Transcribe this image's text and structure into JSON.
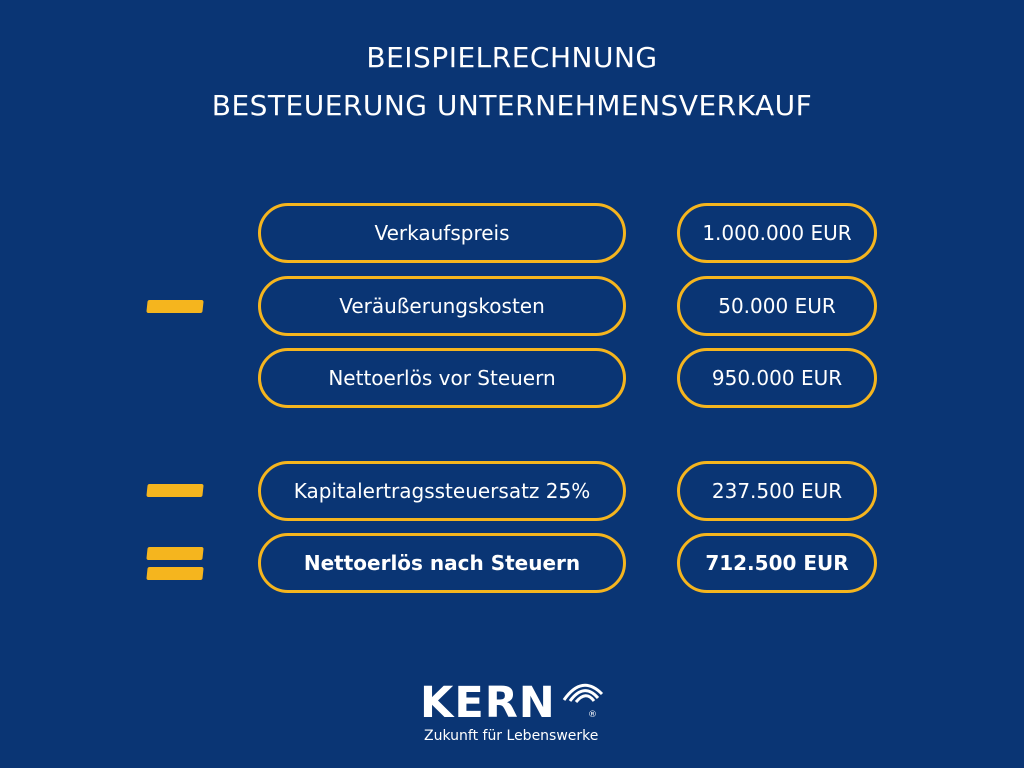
{
  "title": {
    "line1": "BEISPIELRECHNUNG",
    "line2": "BESTEUERUNG UNTERNEHMENSVERKAUF"
  },
  "rows": [
    {
      "label": "Verkaufspreis",
      "value": "1.000.000 EUR",
      "operator": "",
      "bold": false
    },
    {
      "label": "Veräußerungskosten",
      "value": "50.000 EUR",
      "operator": "minus",
      "bold": false
    },
    {
      "label": "Nettoerlös vor Steuern",
      "value": "950.000 EUR",
      "operator": "",
      "bold": false
    },
    {
      "label": "Kapitalertragssteuersatz 25%",
      "value": "237.500 EUR",
      "operator": "minus",
      "bold": false
    },
    {
      "label": "Nettoerlös nach Steuern",
      "value": "712.500 EUR",
      "operator": "equals",
      "bold": true
    }
  ],
  "logo": {
    "name": "KERN",
    "registered": "®",
    "tagline": "Zukunft für Lebenswerke"
  },
  "colors": {
    "background": "#0a3574",
    "accent": "#f5b51e",
    "text": "#ffffff"
  }
}
